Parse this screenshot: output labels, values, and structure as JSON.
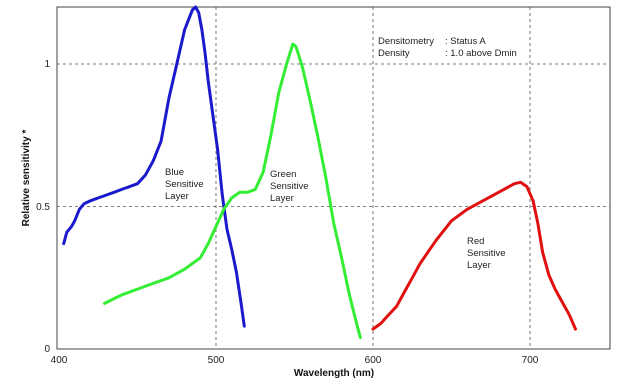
{
  "chart_data": {
    "type": "line",
    "xlabel": "Wavelength (nm)",
    "ylabel": "Relative sensitivity *",
    "xlim": [
      400,
      750
    ],
    "ylim": [
      0,
      1.2
    ],
    "x_ticks": [
      "400",
      "500",
      "600",
      "700"
    ],
    "y_ticks": [
      "0",
      "0.5",
      "1"
    ],
    "grid": "dashed at x=500, 600, 700 and y=0.5, 1",
    "info": {
      "line1_label": "Densitometry",
      "line1_value": ": Status A",
      "line2_label": "Density",
      "line2_value": ": 1.0 above  Dmin"
    },
    "series": [
      {
        "color": "#1a1acc",
        "label_lines": [
          "Blue",
          "Sensitive",
          "Layer"
        ],
        "x": [
          403,
          405,
          408,
          410,
          413,
          416,
          420,
          425,
          430,
          435,
          440,
          445,
          450,
          455,
          460,
          465,
          470,
          475,
          480,
          485,
          487,
          489,
          491,
          493,
          495,
          498,
          501,
          504,
          507,
          510,
          513,
          516,
          518
        ],
        "y": [
          0.37,
          0.41,
          0.43,
          0.45,
          0.49,
          0.51,
          0.52,
          0.53,
          0.54,
          0.55,
          0.56,
          0.57,
          0.58,
          0.61,
          0.66,
          0.73,
          0.88,
          1.0,
          1.12,
          1.19,
          1.2,
          1.18,
          1.12,
          1.04,
          0.94,
          0.82,
          0.7,
          0.54,
          0.42,
          0.35,
          0.27,
          0.16,
          0.08
        ]
      },
      {
        "color": "#33ee33",
        "label_lines": [
          "Green",
          "Sensitive",
          "Layer"
        ],
        "x": [
          429,
          440,
          450,
          460,
          470,
          480,
          490,
          495,
          500,
          505,
          510,
          515,
          520,
          525,
          530,
          535,
          540,
          545,
          549,
          551,
          555,
          560,
          565,
          570,
          575,
          580,
          585,
          590,
          592
        ],
        "y": [
          0.16,
          0.19,
          0.21,
          0.23,
          0.25,
          0.28,
          0.32,
          0.37,
          0.43,
          0.49,
          0.53,
          0.55,
          0.55,
          0.56,
          0.62,
          0.75,
          0.9,
          1.0,
          1.07,
          1.06,
          0.99,
          0.87,
          0.74,
          0.6,
          0.44,
          0.32,
          0.19,
          0.08,
          0.04
        ]
      },
      {
        "color": "#e01010",
        "label_lines": [
          "Red",
          "Sensitive",
          "Layer"
        ],
        "x": [
          600,
          605,
          610,
          615,
          620,
          625,
          630,
          640,
          650,
          660,
          670,
          680,
          690,
          694,
          698,
          702,
          705,
          708,
          712,
          716,
          720,
          725,
          729
        ],
        "y": [
          0.07,
          0.09,
          0.12,
          0.15,
          0.2,
          0.25,
          0.3,
          0.38,
          0.45,
          0.49,
          0.52,
          0.55,
          0.58,
          0.585,
          0.57,
          0.52,
          0.44,
          0.34,
          0.26,
          0.21,
          0.17,
          0.12,
          0.07
        ]
      }
    ]
  }
}
